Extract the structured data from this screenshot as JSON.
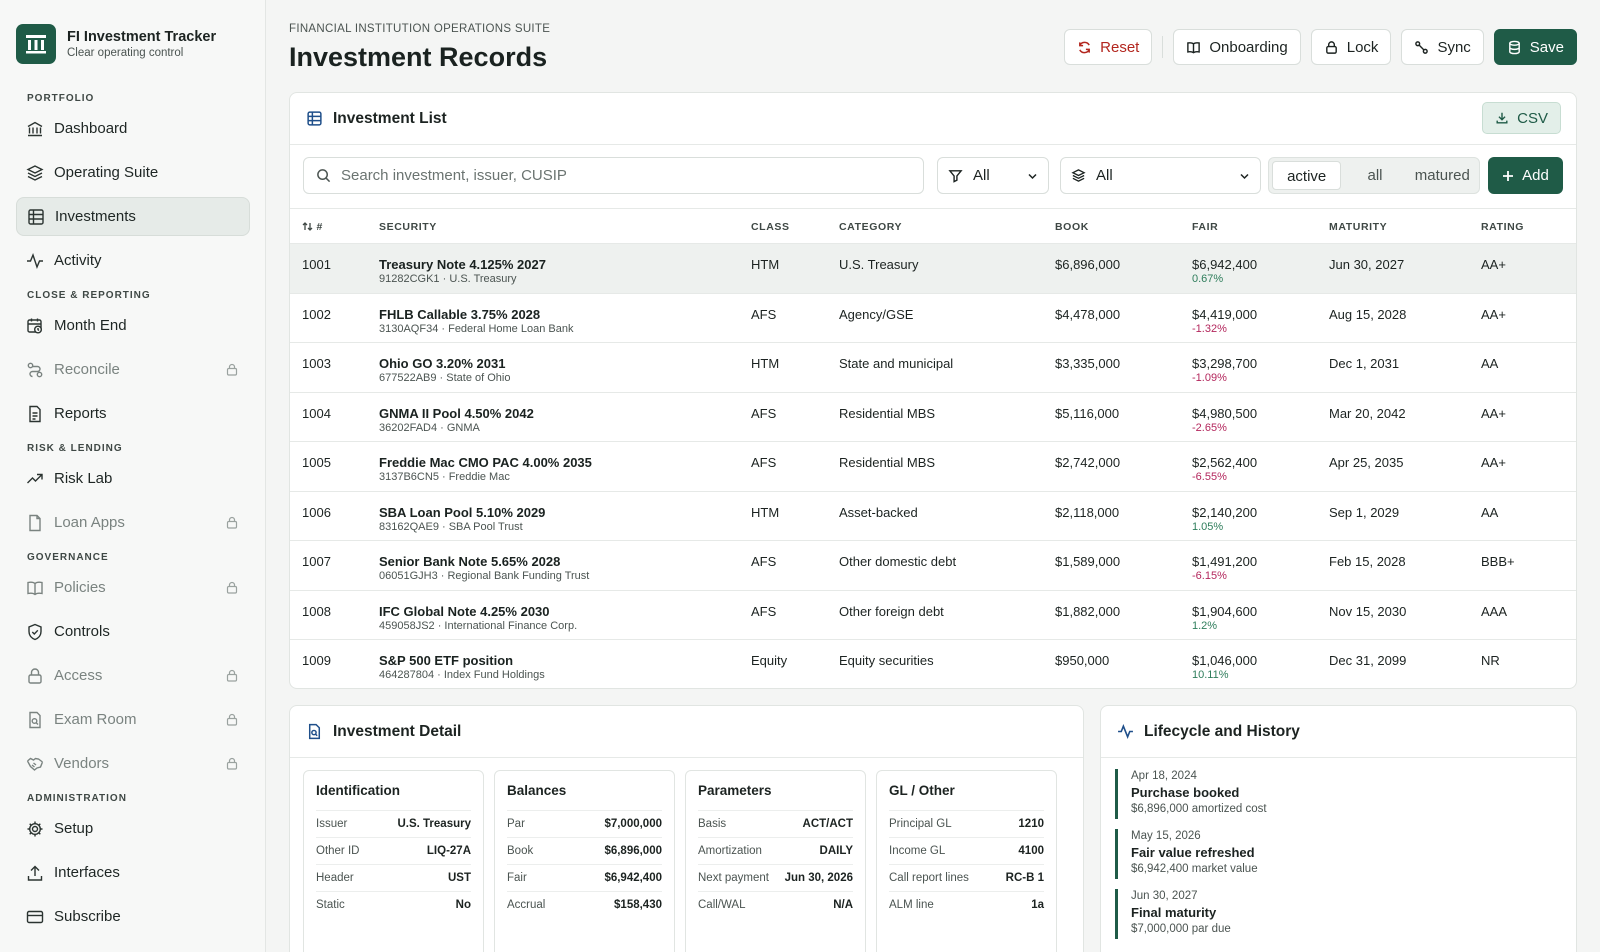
{
  "app": {
    "title": "FI Investment Tracker",
    "subtitle": "Clear operating control"
  },
  "nav": {
    "sections": [
      {
        "label": "PORTFOLIO",
        "items": [
          {
            "label": "Dashboard",
            "icon": "bank-icon",
            "active": false,
            "locked": false
          },
          {
            "label": "Operating Suite",
            "icon": "layers-icon",
            "active": false,
            "locked": false
          },
          {
            "label": "Investments",
            "icon": "table-icon",
            "active": true,
            "locked": false
          },
          {
            "label": "Activity",
            "icon": "pulse-icon",
            "active": false,
            "locked": false
          }
        ]
      },
      {
        "label": "CLOSE & REPORTING",
        "items": [
          {
            "label": "Month End",
            "icon": "calendar-clock-icon",
            "active": false,
            "locked": false
          },
          {
            "label": "Reconcile",
            "icon": "route-icon",
            "active": false,
            "locked": true
          },
          {
            "label": "Reports",
            "icon": "document-icon",
            "active": false,
            "locked": false
          }
        ]
      },
      {
        "label": "RISK & LENDING",
        "items": [
          {
            "label": "Risk Lab",
            "icon": "trend-icon",
            "active": false,
            "locked": false
          },
          {
            "label": "Loan Apps",
            "icon": "file-icon",
            "active": false,
            "locked": true
          }
        ]
      },
      {
        "label": "GOVERNANCE",
        "items": [
          {
            "label": "Policies",
            "icon": "book-icon",
            "active": false,
            "locked": true
          },
          {
            "label": "Controls",
            "icon": "shield-icon",
            "active": false,
            "locked": false
          },
          {
            "label": "Access",
            "icon": "lock-icon",
            "active": false,
            "locked": true
          },
          {
            "label": "Exam Room",
            "icon": "file-search-icon",
            "active": false,
            "locked": true
          },
          {
            "label": "Vendors",
            "icon": "handshake-icon",
            "active": false,
            "locked": true
          }
        ]
      },
      {
        "label": "ADMINISTRATION",
        "items": [
          {
            "label": "Setup",
            "icon": "gear-icon",
            "active": false,
            "locked": false
          },
          {
            "label": "Interfaces",
            "icon": "upload-icon",
            "active": false,
            "locked": false
          },
          {
            "label": "Subscribe",
            "icon": "card-icon",
            "active": false,
            "locked": false
          }
        ]
      }
    ]
  },
  "header": {
    "suite": "FINANCIAL INSTITUTION OPERATIONS SUITE",
    "title": "Investment Records",
    "buttons": {
      "reset": "Reset",
      "onboarding": "Onboarding",
      "lock": "Lock",
      "sync": "Sync",
      "save": "Save"
    }
  },
  "list": {
    "title": "Investment List",
    "csv": "CSV",
    "search_placeholder": "Search investment, issuer, CUSIP",
    "filter_class": "All",
    "filter_category": "All",
    "segments": [
      "active",
      "all",
      "matured"
    ],
    "segment_selected": "active",
    "add": "Add",
    "columns": {
      "id": "#",
      "security": "SECURITY",
      "class": "CLASS",
      "category": "CATEGORY",
      "book": "BOOK",
      "fair": "FAIR",
      "maturity": "MATURITY",
      "rating": "RATING"
    },
    "rows": [
      {
        "id": "1001",
        "name": "Treasury Note 4.125% 2027",
        "sub": "91282CGK1 · U.S. Treasury",
        "class": "HTM",
        "category": "U.S. Treasury",
        "book": "$6,896,000",
        "fair": "$6,942,400",
        "change": "0.67%",
        "dir": "pos",
        "maturity": "Jun 30, 2027",
        "rating": "AA+"
      },
      {
        "id": "1002",
        "name": "FHLB Callable 3.75% 2028",
        "sub": "3130AQF34 · Federal Home Loan Bank",
        "class": "AFS",
        "category": "Agency/GSE",
        "book": "$4,478,000",
        "fair": "$4,419,000",
        "change": "-1.32%",
        "dir": "neg",
        "maturity": "Aug 15, 2028",
        "rating": "AA+"
      },
      {
        "id": "1003",
        "name": "Ohio GO 3.20% 2031",
        "sub": "677522AB9 · State of Ohio",
        "class": "HTM",
        "category": "State and municipal",
        "book": "$3,335,000",
        "fair": "$3,298,700",
        "change": "-1.09%",
        "dir": "neg",
        "maturity": "Dec 1, 2031",
        "rating": "AA"
      },
      {
        "id": "1004",
        "name": "GNMA II Pool 4.50% 2042",
        "sub": "36202FAD4 · GNMA",
        "class": "AFS",
        "category": "Residential MBS",
        "book": "$5,116,000",
        "fair": "$4,980,500",
        "change": "-2.65%",
        "dir": "neg",
        "maturity": "Mar 20, 2042",
        "rating": "AA+"
      },
      {
        "id": "1005",
        "name": "Freddie Mac CMO PAC 4.00% 2035",
        "sub": "3137B6CN5 · Freddie Mac",
        "class": "AFS",
        "category": "Residential MBS",
        "book": "$2,742,000",
        "fair": "$2,562,400",
        "change": "-6.55%",
        "dir": "neg",
        "maturity": "Apr 25, 2035",
        "rating": "AA+"
      },
      {
        "id": "1006",
        "name": "SBA Loan Pool 5.10% 2029",
        "sub": "83162QAE9 · SBA Pool Trust",
        "class": "HTM",
        "category": "Asset-backed",
        "book": "$2,118,000",
        "fair": "$2,140,200",
        "change": "1.05%",
        "dir": "pos",
        "maturity": "Sep 1, 2029",
        "rating": "AA"
      },
      {
        "id": "1007",
        "name": "Senior Bank Note 5.65% 2028",
        "sub": "06051GJH3 · Regional Bank Funding Trust",
        "class": "AFS",
        "category": "Other domestic debt",
        "book": "$1,589,000",
        "fair": "$1,491,200",
        "change": "-6.15%",
        "dir": "neg",
        "maturity": "Feb 15, 2028",
        "rating": "BBB+"
      },
      {
        "id": "1008",
        "name": "IFC Global Note 4.25% 2030",
        "sub": "459058JS2 · International Finance Corp.",
        "class": "AFS",
        "category": "Other foreign debt",
        "book": "$1,882,000",
        "fair": "$1,904,600",
        "change": "1.2%",
        "dir": "pos",
        "maturity": "Nov 15, 2030",
        "rating": "AAA"
      },
      {
        "id": "1009",
        "name": "S&P 500 ETF position",
        "sub": "464287804 · Index Fund Holdings",
        "class": "Equity",
        "category": "Equity securities",
        "book": "$950,000",
        "fair": "$1,046,000",
        "change": "10.11%",
        "dir": "pos",
        "maturity": "Dec 31, 2099",
        "rating": "NR"
      }
    ]
  },
  "detail": {
    "title": "Investment Detail",
    "panels": [
      {
        "title": "Identification",
        "rows": [
          [
            "Issuer",
            "U.S. Treasury"
          ],
          [
            "Other ID",
            "LIQ-27A"
          ],
          [
            "Header",
            "UST"
          ],
          [
            "Static",
            "No"
          ]
        ]
      },
      {
        "title": "Balances",
        "rows": [
          [
            "Par",
            "$7,000,000"
          ],
          [
            "Book",
            "$6,896,000"
          ],
          [
            "Fair",
            "$6,942,400"
          ],
          [
            "Accrual",
            "$158,430"
          ]
        ]
      },
      {
        "title": "Parameters",
        "rows": [
          [
            "Basis",
            "ACT/ACT"
          ],
          [
            "Amortization",
            "DAILY"
          ],
          [
            "Next payment",
            "Jun 30, 2026"
          ],
          [
            "Call/WAL",
            "N/A"
          ]
        ]
      },
      {
        "title": "GL / Other",
        "rows": [
          [
            "Principal GL",
            "1210"
          ],
          [
            "Income GL",
            "4100"
          ],
          [
            "Call report lines",
            "RC-B 1"
          ],
          [
            "ALM line",
            "1a"
          ]
        ]
      }
    ]
  },
  "lifecycle": {
    "title": "Lifecycle and History",
    "events": [
      {
        "date": "Apr 18, 2024",
        "title": "Purchase booked",
        "sub": "$6,896,000 amortized cost"
      },
      {
        "date": "May 15, 2026",
        "title": "Fair value refreshed",
        "sub": "$6,942,400 market value"
      },
      {
        "date": "Jun 30, 2027",
        "title": "Final maturity",
        "sub": "$7,000,000 par due"
      }
    ]
  }
}
